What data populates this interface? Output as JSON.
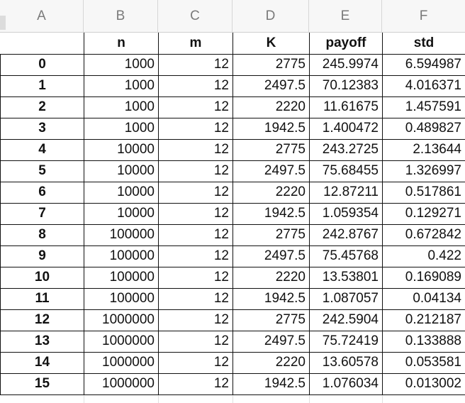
{
  "columns": [
    "A",
    "B",
    "C",
    "D",
    "E",
    "F"
  ],
  "header": {
    "a": "",
    "b": "n",
    "c": "m",
    "d": "K",
    "e": "payoff",
    "f": "std"
  },
  "rows": [
    {
      "idx": "0",
      "n": "1000",
      "m": "12",
      "K": "2775",
      "payoff": "245.9974",
      "std": "6.594987"
    },
    {
      "idx": "1",
      "n": "1000",
      "m": "12",
      "K": "2497.5",
      "payoff": "70.12383",
      "std": "4.016371"
    },
    {
      "idx": "2",
      "n": "1000",
      "m": "12",
      "K": "2220",
      "payoff": "11.61675",
      "std": "1.457591"
    },
    {
      "idx": "3",
      "n": "1000",
      "m": "12",
      "K": "1942.5",
      "payoff": "1.400472",
      "std": "0.489827"
    },
    {
      "idx": "4",
      "n": "10000",
      "m": "12",
      "K": "2775",
      "payoff": "243.2725",
      "std": "2.13644"
    },
    {
      "idx": "5",
      "n": "10000",
      "m": "12",
      "K": "2497.5",
      "payoff": "75.68455",
      "std": "1.326997"
    },
    {
      "idx": "6",
      "n": "10000",
      "m": "12",
      "K": "2220",
      "payoff": "12.87211",
      "std": "0.517861"
    },
    {
      "idx": "7",
      "n": "10000",
      "m": "12",
      "K": "1942.5",
      "payoff": "1.059354",
      "std": "0.129271"
    },
    {
      "idx": "8",
      "n": "100000",
      "m": "12",
      "K": "2775",
      "payoff": "242.8767",
      "std": "0.672842"
    },
    {
      "idx": "9",
      "n": "100000",
      "m": "12",
      "K": "2497.5",
      "payoff": "75.45768",
      "std": "0.422"
    },
    {
      "idx": "10",
      "n": "100000",
      "m": "12",
      "K": "2220",
      "payoff": "13.53801",
      "std": "0.169089"
    },
    {
      "idx": "11",
      "n": "100000",
      "m": "12",
      "K": "1942.5",
      "payoff": "1.087057",
      "std": "0.04134"
    },
    {
      "idx": "12",
      "n": "1000000",
      "m": "12",
      "K": "2775",
      "payoff": "242.5904",
      "std": "0.212187"
    },
    {
      "idx": "13",
      "n": "1000000",
      "m": "12",
      "K": "2497.5",
      "payoff": "75.72419",
      "std": "0.133888"
    },
    {
      "idx": "14",
      "n": "1000000",
      "m": "12",
      "K": "2220",
      "payoff": "13.60578",
      "std": "0.053581"
    },
    {
      "idx": "15",
      "n": "1000000",
      "m": "12",
      "K": "1942.5",
      "payoff": "1.076034",
      "std": "0.013002"
    }
  ]
}
